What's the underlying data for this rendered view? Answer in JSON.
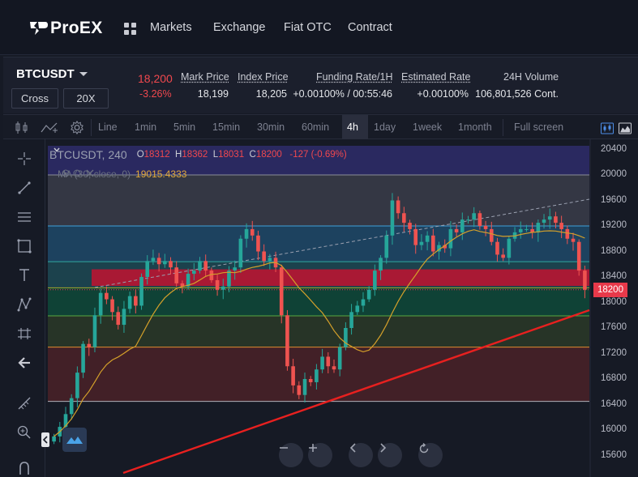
{
  "nav": {
    "brand": "ProEX",
    "links": [
      "Markets",
      "Exchange",
      "Fiat OTC",
      "Contract"
    ]
  },
  "ticker": {
    "symbol": "BTCUSDT",
    "margin_mode": "Cross",
    "leverage": "20X",
    "last_price": "18,200",
    "change_pct": "-3.26%",
    "stats": [
      {
        "label": "Mark Price",
        "value": "18,199"
      },
      {
        "label": "Index Price",
        "value": "18,205"
      },
      {
        "label": "Funding Rate/1H",
        "value": "+0.00100% / 00:55:46"
      },
      {
        "label": "Estimated Rate",
        "value": "+0.00100%"
      },
      {
        "label": "24H Volume",
        "value": "106,801,526 Cont."
      }
    ]
  },
  "toolbar": {
    "line_label": "Line",
    "timeframes": [
      "1min",
      "5min",
      "15min",
      "30min",
      "60min",
      "4h",
      "1day",
      "1week",
      "1month"
    ],
    "active_timeframe": "4h",
    "fullscreen_label": "Full screen"
  },
  "legend": {
    "symbol_interval": "BTCUSDT, 240",
    "open_label": "O",
    "open": "18312",
    "high_label": "H",
    "high": "18362",
    "low_label": "L",
    "low": "18031",
    "close_label": "C",
    "close": "18200",
    "change": "-127 (-0.69%)",
    "ma_label": "MA (30, close, 0)",
    "ma_value": "19015.4333"
  },
  "colors": {
    "up": "#26a69a",
    "down": "#ef5350",
    "accent_red": "#e8394a",
    "ma_line": "#d4a02a",
    "trendline": "#e8201f"
  },
  "chart_data": {
    "type": "candlestick",
    "symbol": "BTCUSDT",
    "interval": "240",
    "y_ticks": [
      20400,
      20000,
      19600,
      19200,
      18800,
      18400,
      18000,
      17600,
      17200,
      16800,
      16400,
      16000,
      15600
    ],
    "last_price": 18200,
    "last_price_label": "18200",
    "fib_levels": [
      20000,
      19200,
      18640,
      18230,
      17790,
      17300,
      16450
    ],
    "highlight_band": [
      18260,
      18520
    ],
    "close_path": [
      15900,
      16050,
      16250,
      16500,
      16900,
      17350,
      17300,
      17800,
      18150,
      18050,
      17850,
      17650,
      17900,
      18100,
      17950,
      18400,
      18650,
      18700,
      18600,
      18650,
      18550,
      18300,
      18250,
      18450,
      18500,
      18650,
      18500,
      18350,
      18200,
      18250,
      18500,
      18550,
      19000,
      19150,
      19050,
      18800,
      18650,
      18700,
      18550,
      17800,
      17000,
      16700,
      16550,
      16800,
      16750,
      16950,
      17150,
      17000,
      16950,
      17300,
      17600,
      17850,
      17950,
      18050,
      18200,
      18500,
      18700,
      19050,
      19600,
      19400,
      19250,
      19150,
      18900,
      18950,
      19050,
      18800,
      18900,
      18850,
      19150,
      19100,
      19300,
      19300,
      19400,
      19200,
      19150,
      18950,
      18750,
      18700,
      19000,
      19100,
      19150,
      19150,
      19100,
      19250,
      19300,
      19350,
      19250,
      19150,
      19000,
      18950,
      18500,
      18200
    ]
  }
}
